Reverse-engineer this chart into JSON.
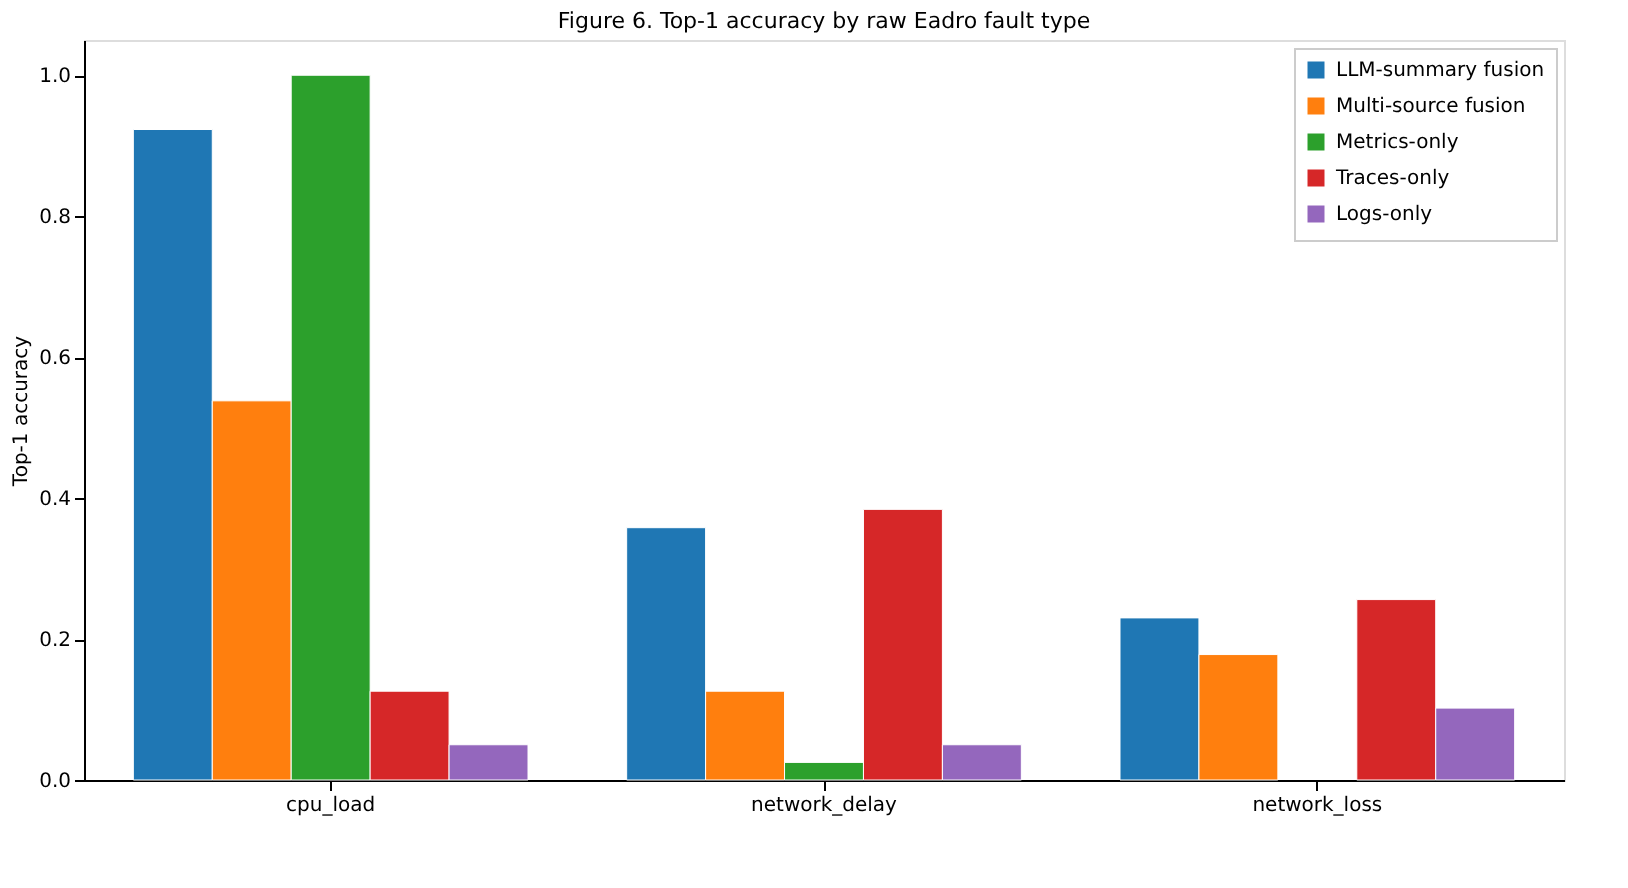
{
  "chart_data": {
    "type": "bar",
    "title": "Figure 6. Top-1 accuracy by raw Eadro fault type",
    "ylabel": "Top-1 accuracy",
    "categories": [
      "cpu_load",
      "network_delay",
      "network_loss"
    ],
    "series": [
      {
        "name": "LLM-summary fusion",
        "color": "#1f77b4",
        "values": [
          0.923,
          0.358,
          0.23
        ]
      },
      {
        "name": "Multi-source fusion",
        "color": "#ff7f0e",
        "values": [
          0.538,
          0.126,
          0.178
        ]
      },
      {
        "name": "Metrics-only",
        "color": "#2ca02c",
        "values": [
          1.0,
          0.025,
          null
        ]
      },
      {
        "name": "Traces-only",
        "color": "#d62728",
        "values": [
          0.126,
          0.384,
          0.256
        ]
      },
      {
        "name": "Logs-only",
        "color": "#9467bd",
        "values": [
          0.05,
          0.05,
          0.102
        ]
      }
    ],
    "ylim": [
      0,
      1.05
    ],
    "yticks": [
      {
        "value": 0,
        "label": "0.0"
      },
      {
        "value": 0.2,
        "label": "0.2"
      },
      {
        "value": 0.4,
        "label": "0.4"
      },
      {
        "value": 0.6,
        "label": "0.6"
      },
      {
        "value": 0.8,
        "label": "0.8"
      },
      {
        "value": 1.0,
        "label": "1.0"
      }
    ],
    "legend": "top right",
    "grid": false
  }
}
